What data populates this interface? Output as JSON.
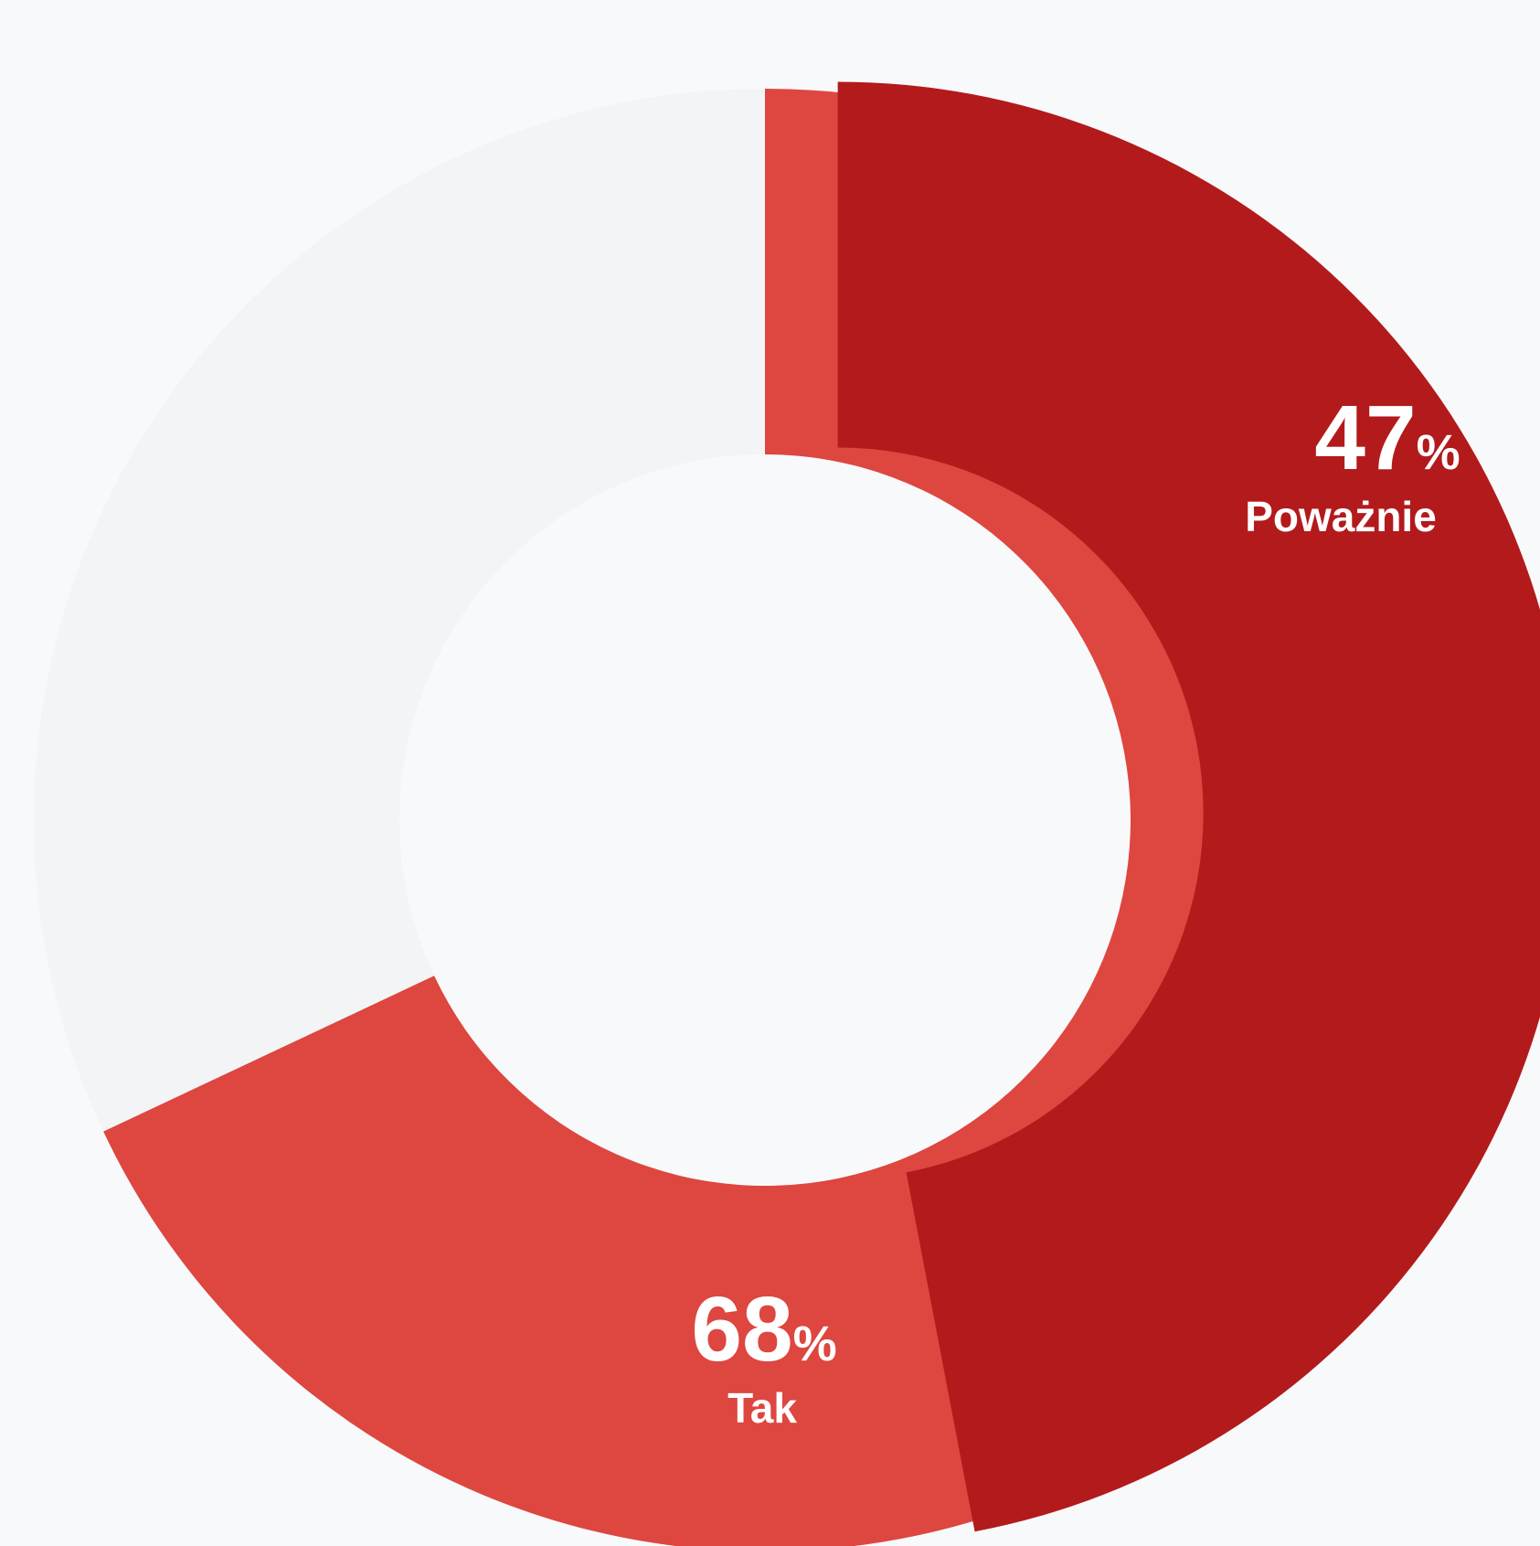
{
  "chart_data": {
    "type": "pie",
    "variant": "donut",
    "slices": [
      {
        "label": "Tak",
        "value": 68,
        "value_text": "68",
        "unit": "%",
        "color": "#de4640"
      },
      {
        "label": "Poważnie",
        "value": 47,
        "value_text": "47",
        "unit": "%",
        "color": "#b31a1c",
        "exploded": true
      }
    ],
    "background_color": "#f3f4f6"
  }
}
